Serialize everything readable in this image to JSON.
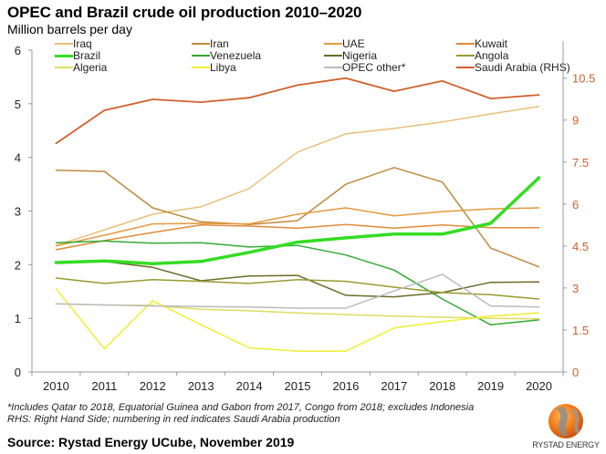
{
  "header": {
    "title": "OPEC and Brazil crude oil production 2010–2020",
    "subtitle": "Million barrels per day"
  },
  "footer": {
    "footnote_1": "*Includes Qatar to 2018, Equatorial Guinea and Gabon from 2017, Congo from 2018; excludes Indonesia",
    "footnote_2": "RHS: Right Hand Side; numbering in red indicates Saudi Arabia production",
    "source": "Source: Rystad Energy UCube, November 2019",
    "logo_text": "RYSTAD ENERGY"
  },
  "chart_data": {
    "type": "line",
    "title": "OPEC and Brazil crude oil production 2010–2020",
    "ylabel": "Million barrels per day",
    "xlabel": "",
    "categories": [
      "2010",
      "2011",
      "2012",
      "2013",
      "2014",
      "2015",
      "2016",
      "2017",
      "2018",
      "2019",
      "2020"
    ],
    "ylim": [
      0,
      6
    ],
    "yticks": [
      "0",
      "1",
      "2",
      "3",
      "4",
      "5",
      "6"
    ],
    "y2lim": [
      0,
      11.5
    ],
    "y2ticks": [
      "0",
      "1.5",
      "3",
      "4.5",
      "6",
      "7.5",
      "9",
      "10.5"
    ],
    "y2_color": "#d0602e",
    "grid": false,
    "legend_position": "top",
    "series": [
      {
        "name": "Iraq",
        "axis": "left",
        "color": "#e8c07a",
        "width": 1.5,
        "values": [
          2.36,
          2.65,
          2.94,
          3.08,
          3.42,
          4.1,
          4.44,
          4.54,
          4.66,
          4.81,
          4.95
        ]
      },
      {
        "name": "Iran",
        "axis": "left",
        "color": "#c08a3e",
        "width": 1.5,
        "values": [
          3.76,
          3.74,
          3.06,
          2.8,
          2.75,
          2.82,
          3.5,
          3.81,
          3.54,
          2.31,
          1.96
        ]
      },
      {
        "name": "UAE",
        "axis": "left",
        "color": "#e39a3c",
        "width": 1.5,
        "values": [
          2.35,
          2.55,
          2.76,
          2.77,
          2.76,
          2.94,
          3.06,
          2.91,
          2.99,
          3.04,
          3.06
        ]
      },
      {
        "name": "Kuwait",
        "axis": "left",
        "color": "#e08a3a",
        "width": 1.5,
        "values": [
          2.28,
          2.45,
          2.6,
          2.74,
          2.72,
          2.68,
          2.75,
          2.68,
          2.74,
          2.69,
          2.69
        ]
      },
      {
        "name": "Brazil",
        "axis": "left",
        "color": "#33dd22",
        "width": 3.5,
        "values": [
          2.04,
          2.07,
          2.02,
          2.06,
          2.23,
          2.42,
          2.5,
          2.57,
          2.57,
          2.77,
          3.62
        ]
      },
      {
        "name": "Venezuela",
        "axis": "left",
        "color": "#33aa33",
        "width": 1.5,
        "values": [
          2.41,
          2.44,
          2.4,
          2.41,
          2.33,
          2.36,
          2.18,
          1.9,
          1.36,
          0.88,
          0.97
        ]
      },
      {
        "name": "Nigeria",
        "axis": "left",
        "color": "#6b6b28",
        "width": 1.5,
        "values": [
          2.05,
          2.06,
          1.95,
          1.7,
          1.79,
          1.8,
          1.43,
          1.4,
          1.48,
          1.67,
          1.68
        ]
      },
      {
        "name": "Angola",
        "axis": "left",
        "color": "#9a9a30",
        "width": 1.5,
        "values": [
          1.75,
          1.65,
          1.72,
          1.69,
          1.65,
          1.72,
          1.69,
          1.58,
          1.48,
          1.44,
          1.36
        ]
      },
      {
        "name": "Algeria",
        "axis": "left",
        "color": "#e0dc60",
        "width": 1.5,
        "values": [
          1.27,
          1.25,
          1.24,
          1.17,
          1.14,
          1.1,
          1.07,
          1.04,
          1.02,
          1.0,
          0.99
        ]
      },
      {
        "name": "Libya",
        "axis": "left",
        "color": "#f0ee30",
        "width": 1.5,
        "values": [
          1.55,
          0.43,
          1.33,
          0.88,
          0.45,
          0.39,
          0.39,
          0.82,
          0.94,
          1.04,
          1.1
        ]
      },
      {
        "name": "OPEC other*",
        "axis": "left",
        "color": "#bbbbbb",
        "width": 1.5,
        "values": [
          1.27,
          1.25,
          1.23,
          1.22,
          1.21,
          1.19,
          1.19,
          1.51,
          1.82,
          1.23,
          1.21
        ]
      },
      {
        "name": "Saudi Arabia (RHS)",
        "axis": "right",
        "color": "#d0602e",
        "width": 1.8,
        "values": [
          8.17,
          9.35,
          9.74,
          9.64,
          9.8,
          10.25,
          10.5,
          10.03,
          10.4,
          9.77,
          9.9
        ]
      }
    ]
  }
}
